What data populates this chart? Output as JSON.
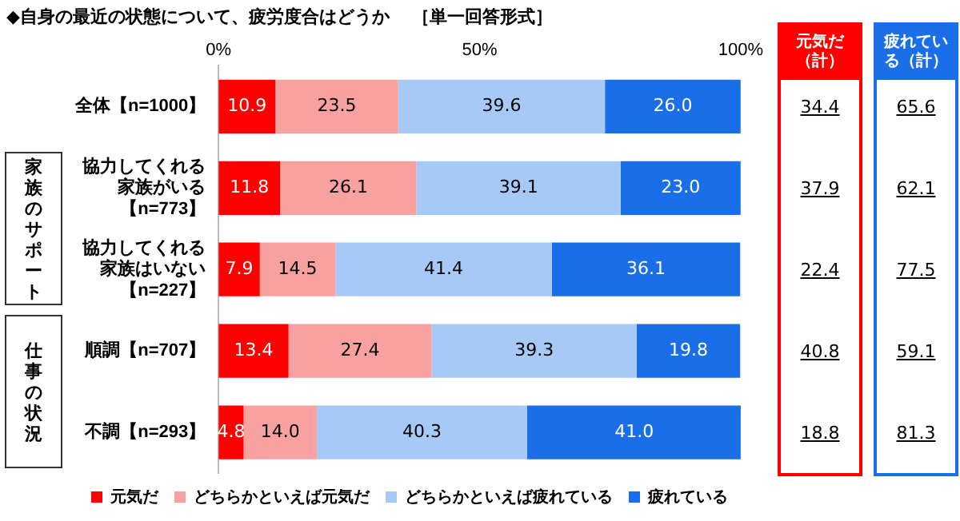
{
  "chart_data": [
    {
      "type": "bar",
      "orientation": "horizontal",
      "stacked": true,
      "title": "◆自身の最近の状態について、疲労度合はどうか",
      "subtitle": "［単一回答形式］",
      "categories": [
        "全体【n=1000】",
        "協力してくれる家族がいる【n=773】",
        "協力してくれる家族はいない【n=227】",
        "順調【n=707】",
        "不調【n=293】"
      ],
      "series": [
        {
          "name": "元気だ",
          "color": "#ff0000",
          "values": [
            10.9,
            11.8,
            7.9,
            13.4,
            4.8
          ],
          "value_labels": [
            "10.9",
            "11.8",
            "7.9",
            "13.4",
            "4.8"
          ]
        },
        {
          "name": "どちらかといえば元気だ",
          "color": "#f7a1a1",
          "values": [
            23.5,
            26.1,
            14.5,
            27.4,
            14.0
          ],
          "value_labels": [
            "23.5",
            "26.1",
            "14.5",
            "27.4",
            "14.0"
          ]
        },
        {
          "name": "どちらかといえば疲れている",
          "color": "#a6caf5",
          "values": [
            39.6,
            39.1,
            41.4,
            39.3,
            40.3
          ],
          "value_labels": [
            "39.6",
            "39.1",
            "41.4",
            "39.3",
            "40.3"
          ]
        },
        {
          "name": "疲れている",
          "color": "#1a6fe8",
          "values": [
            26.0,
            23.0,
            36.1,
            19.8,
            41.0
          ],
          "value_labels": [
            "26.0",
            "23.0",
            "36.1",
            "19.8",
            "41.0"
          ]
        }
      ],
      "xlim": [
        0,
        100
      ],
      "xticks": [
        {
          "value": 0,
          "label": "0%"
        },
        {
          "value": 50,
          "label": "50%"
        },
        {
          "value": 100,
          "label": "100%"
        }
      ],
      "legend": "bottom",
      "grid": false,
      "annotations": [
        "家族のサポート",
        "仕事の状況"
      ]
    },
    {
      "type": "other",
      "title": "元気だ（計）",
      "annotations": [
        "34.4",
        "37.9",
        "22.4",
        "40.8",
        "18.8"
      ]
    },
    {
      "type": "other",
      "title": "疲れている（計）",
      "annotations": [
        "65.6",
        "62.1",
        "77.5",
        "59.1",
        "81.3"
      ]
    }
  ]
}
